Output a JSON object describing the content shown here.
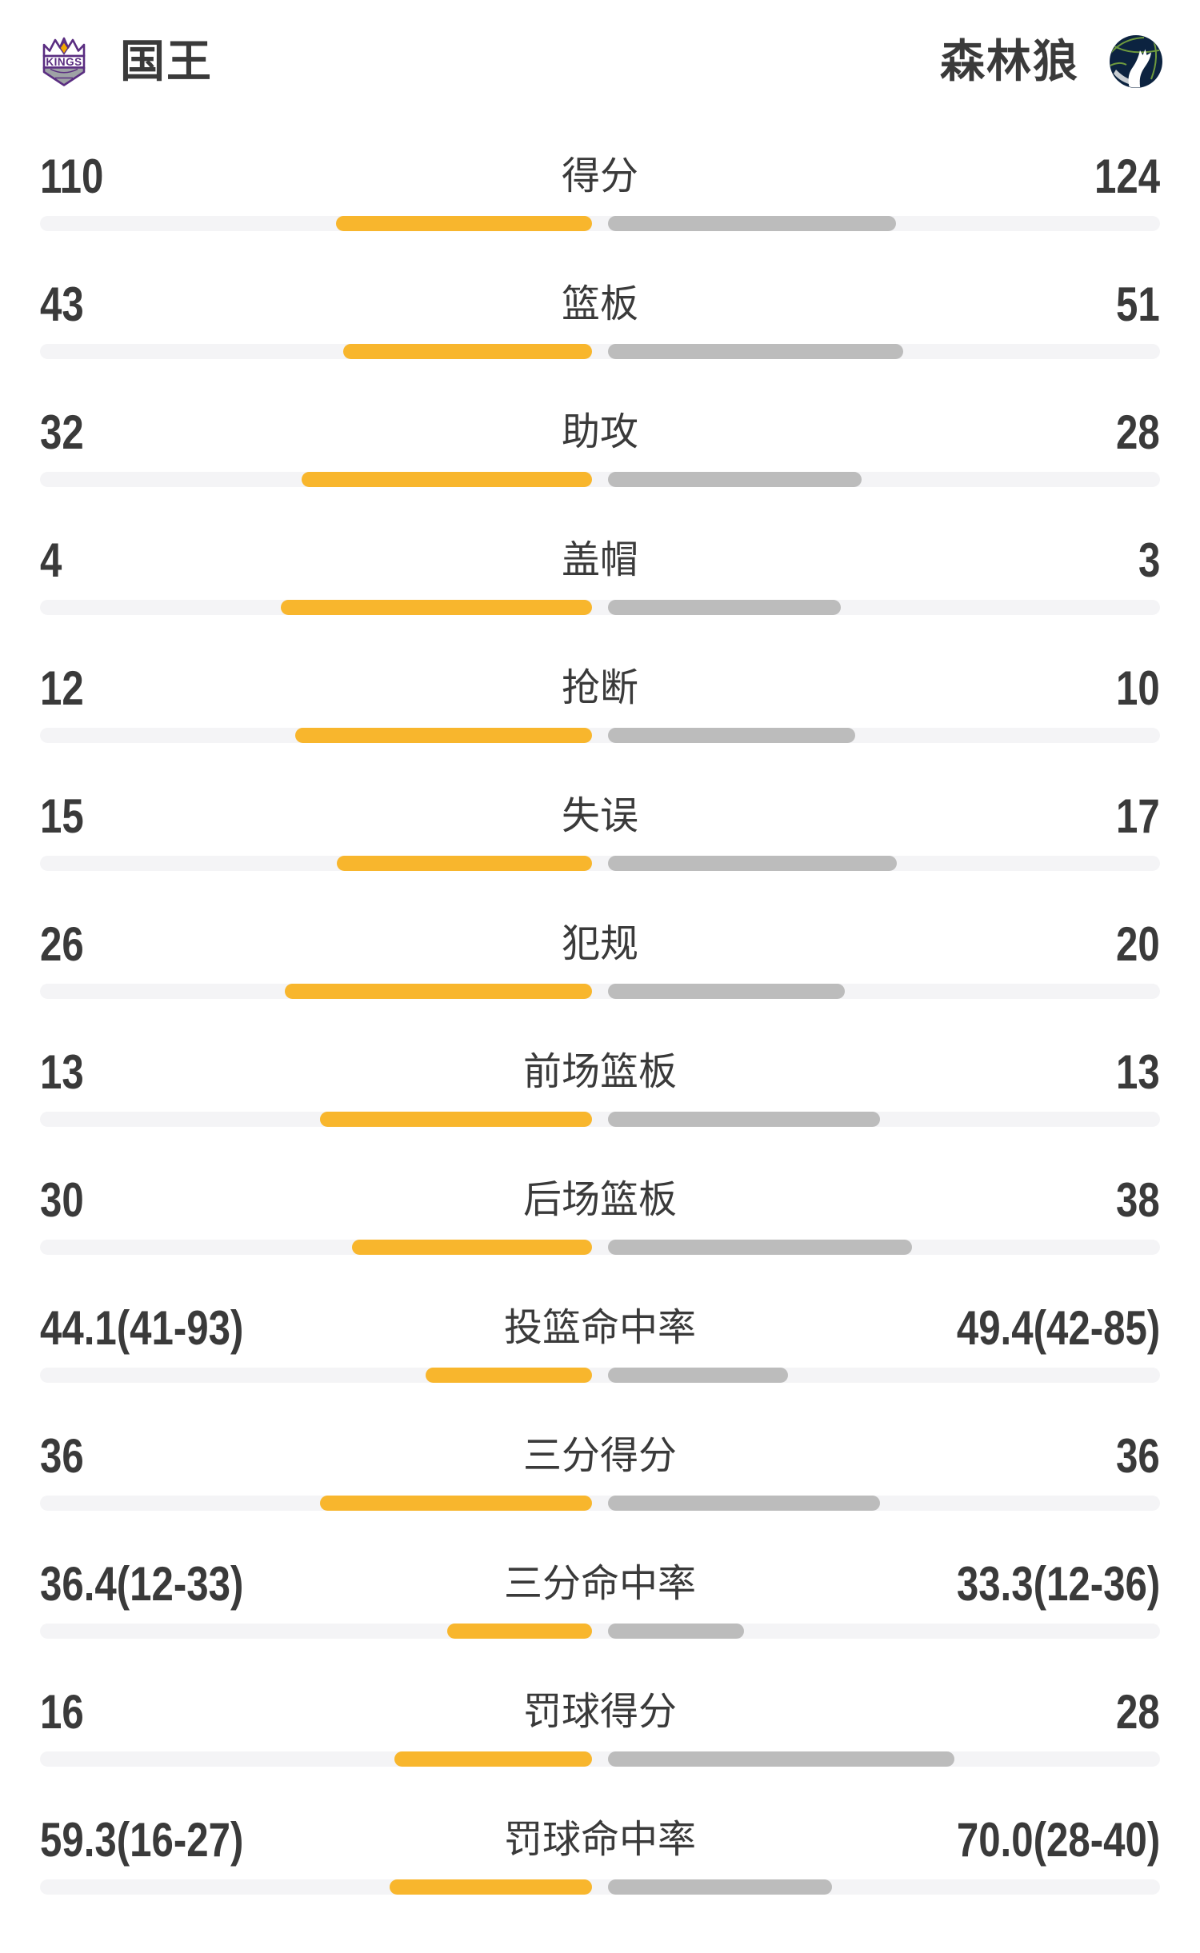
{
  "header": {
    "left_team": {
      "name": "国王",
      "logo": "sacramento-kings-crest"
    },
    "right_team": {
      "name": "森林狼",
      "logo": "minnesota-timberwolves-globe"
    }
  },
  "colors": {
    "left_bar": "#F8B62D",
    "right_bar": "#BCBCBC",
    "track": "#F4F4F6",
    "text": "#3A3A3A",
    "kings_purple": "#5A2D81",
    "kings_silver": "#9EA2A5",
    "kings_gold": "#F2A900",
    "wolves_navy": "#0C2340",
    "wolves_green": "#6E9A3E",
    "wolves_swoosh": "#C9CED3"
  },
  "chart_data": {
    "type": "bar",
    "layout": "paired-horizontal-comparison, fills grow outward from center",
    "teams": [
      "国王",
      "森林狼"
    ],
    "legend_position": "header",
    "grid": false,
    "rows": [
      {
        "label": "得分",
        "left": "110",
        "right": "124",
        "left_value": 110,
        "right_value": 124,
        "scale": "share"
      },
      {
        "label": "篮板",
        "left": "43",
        "right": "51",
        "left_value": 43,
        "right_value": 51,
        "scale": "share"
      },
      {
        "label": "助攻",
        "left": "32",
        "right": "28",
        "left_value": 32,
        "right_value": 28,
        "scale": "share"
      },
      {
        "label": "盖帽",
        "left": "4",
        "right": "3",
        "left_value": 4,
        "right_value": 3,
        "scale": "share"
      },
      {
        "label": "抢断",
        "left": "12",
        "right": "10",
        "left_value": 12,
        "right_value": 10,
        "scale": "share"
      },
      {
        "label": "失误",
        "left": "15",
        "right": "17",
        "left_value": 15,
        "right_value": 17,
        "scale": "share"
      },
      {
        "label": "犯规",
        "left": "26",
        "right": "20",
        "left_value": 26,
        "right_value": 20,
        "scale": "share"
      },
      {
        "label": "前场篮板",
        "left": "13",
        "right": "13",
        "left_value": 13,
        "right_value": 13,
        "scale": "share"
      },
      {
        "label": "后场篮板",
        "left": "30",
        "right": "38",
        "left_value": 30,
        "right_value": 38,
        "scale": "share"
      },
      {
        "label": "投篮命中率",
        "left": "44.1(41-93)",
        "right": "49.4(42-85)",
        "left_value": 44.1,
        "right_value": 49.4,
        "left_made": 41,
        "left_att": 93,
        "right_made": 42,
        "right_att": 85,
        "scale": "made-over-made-plus-att"
      },
      {
        "label": "三分得分",
        "left": "36",
        "right": "36",
        "left_value": 36,
        "right_value": 36,
        "scale": "share"
      },
      {
        "label": "三分命中率",
        "left": "36.4(12-33)",
        "right": "33.3(12-36)",
        "left_value": 36.4,
        "right_value": 33.3,
        "left_made": 12,
        "left_att": 33,
        "right_made": 12,
        "right_att": 36,
        "scale": "made-over-made-plus-att"
      },
      {
        "label": "罚球得分",
        "left": "16",
        "right": "28",
        "left_value": 16,
        "right_value": 28,
        "scale": "share"
      },
      {
        "label": "罚球命中率",
        "left": "59.3(16-27)",
        "right": "70.0(28-40)",
        "left_value": 59.3,
        "right_value": 70.0,
        "left_made": 16,
        "left_att": 27,
        "right_made": 28,
        "right_att": 40,
        "scale": "made-over-made-plus-att"
      }
    ]
  }
}
